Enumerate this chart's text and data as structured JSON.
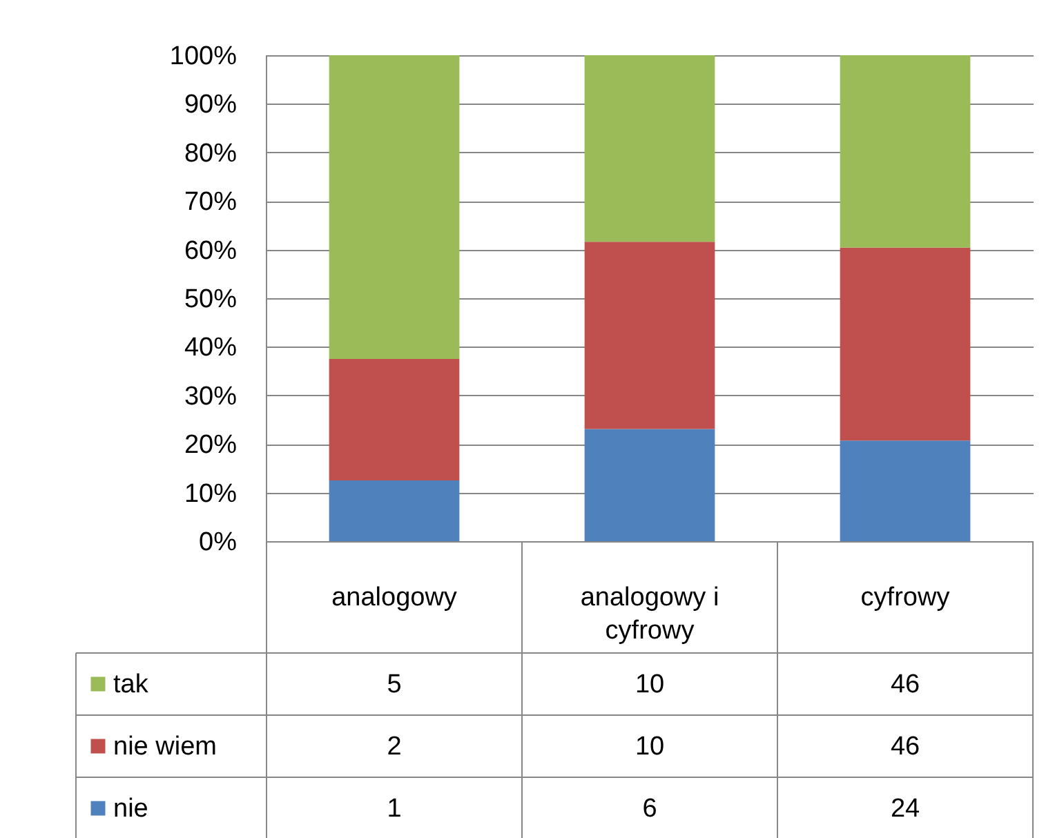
{
  "chart_data": {
    "type": "bar",
    "stacked": true,
    "categories": [
      "analogowy",
      "analogowy i cyfrowy",
      "cyfrowy"
    ],
    "series": [
      {
        "name": "nie",
        "color": "#4f81bd",
        "values": [
          12.5,
          23.1,
          20.7
        ]
      },
      {
        "name": "nie wiem",
        "color": "#c0504d",
        "values": [
          25.0,
          38.5,
          39.7
        ]
      },
      {
        "name": "tak",
        "color": "#9bbb59",
        "values": [
          62.5,
          38.4,
          39.6
        ]
      }
    ],
    "annotations": [
      "5",
      "10",
      "46",
      "2",
      "10",
      "46",
      "1",
      "6",
      "24"
    ],
    "ylim": [
      0,
      100
    ],
    "yticks": [
      {
        "value": 0,
        "label": "0%"
      },
      {
        "value": 10,
        "label": "10%"
      },
      {
        "value": 20,
        "label": "20%"
      },
      {
        "value": 30,
        "label": "30%"
      },
      {
        "value": 40,
        "label": "40%"
      },
      {
        "value": 50,
        "label": "50%"
      },
      {
        "value": 60,
        "label": "60%"
      },
      {
        "value": 70,
        "label": "70%"
      },
      {
        "value": 80,
        "label": "80%"
      },
      {
        "value": 90,
        "label": "90%"
      },
      {
        "value": 100,
        "label": "100%"
      }
    ],
    "grid": "y",
    "legend": "bottom"
  }
}
